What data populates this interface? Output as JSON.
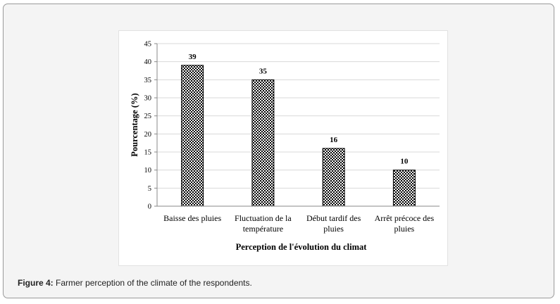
{
  "caption": {
    "label": "Figure 4:",
    "text": "Farmer perception of the climate of the respondents."
  },
  "chart_data": {
    "type": "bar",
    "categories": [
      [
        "Baisse des pluies"
      ],
      [
        "Fluctuation de la",
        "température"
      ],
      [
        "Début tardif des",
        "pluies"
      ],
      [
        "Arrêt précoce des",
        "pluies"
      ]
    ],
    "values": [
      39,
      35,
      16,
      10
    ],
    "data_labels": [
      "39",
      "35",
      "16",
      "10"
    ],
    "title": "",
    "xlabel": "Perception de l'évolution du climat",
    "ylabel": "Pourcentage (%)",
    "ylim": [
      0,
      45
    ],
    "yticks": [
      0,
      5,
      10,
      15,
      20,
      25,
      30,
      35,
      40,
      45
    ],
    "grid": true,
    "bar_pattern": "checkerboard",
    "colors": {
      "bar_dark": "#000000",
      "bar_light": "#ffffff",
      "grid": "#d9d9d9",
      "axis": "#000000"
    }
  }
}
